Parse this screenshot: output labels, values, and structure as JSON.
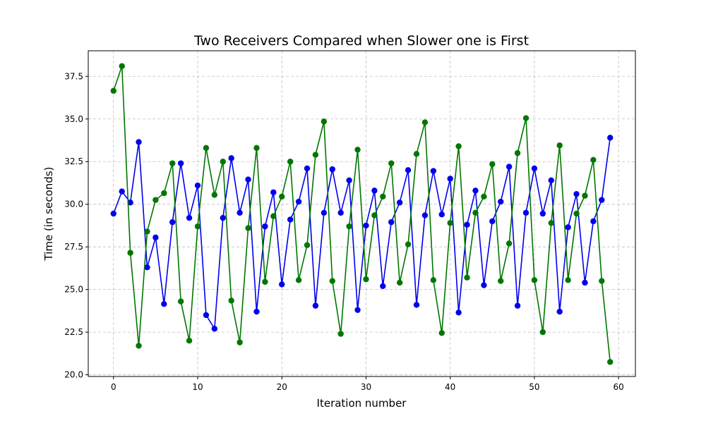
{
  "chart_data": {
    "type": "line",
    "title": "Two Receivers Compared when Slower one is First",
    "xlabel": "Iteration number",
    "ylabel": "Time (in seconds)",
    "xlim": [
      -3,
      62
    ],
    "ylim": [
      19.9,
      39.0
    ],
    "xticks": [
      0,
      10,
      20,
      30,
      40,
      50,
      60
    ],
    "yticks": [
      20.0,
      22.5,
      25.0,
      27.5,
      30.0,
      32.5,
      35.0,
      37.5
    ],
    "grid": true,
    "x": [
      0,
      1,
      2,
      3,
      4,
      5,
      6,
      7,
      8,
      9,
      10,
      11,
      12,
      13,
      14,
      15,
      16,
      17,
      18,
      19,
      20,
      21,
      22,
      23,
      24,
      25,
      26,
      27,
      28,
      29,
      30,
      31,
      32,
      33,
      34,
      35,
      36,
      37,
      38,
      39,
      40,
      41,
      42,
      43,
      44,
      45,
      46,
      47,
      48,
      49,
      50,
      51,
      52,
      53,
      54,
      55,
      56,
      57,
      58,
      59
    ],
    "series": [
      {
        "color": "#0000ee",
        "values": [
          29.45,
          30.75,
          30.1,
          33.65,
          26.3,
          28.05,
          24.15,
          28.95,
          32.4,
          29.2,
          31.1,
          23.5,
          22.7,
          29.2,
          32.7,
          29.5,
          31.45,
          23.7,
          28.7,
          30.7,
          25.3,
          29.1,
          30.15,
          32.1,
          24.05,
          29.5,
          32.05,
          29.5,
          31.4,
          23.8,
          28.75,
          30.8,
          25.2,
          28.95,
          30.1,
          32.0,
          24.1,
          29.35,
          31.95,
          29.4,
          31.5,
          23.65,
          28.8,
          30.8,
          25.25,
          29.0,
          30.15,
          32.2,
          24.05,
          29.5,
          32.1,
          29.45,
          31.4,
          23.7,
          28.65,
          30.6,
          25.4,
          29.0,
          30.25,
          33.9
        ]
      },
      {
        "color": "#007700",
        "values": [
          36.65,
          38.1,
          27.15,
          21.7,
          28.4,
          30.25,
          30.65,
          32.4,
          24.3,
          22.0,
          28.7,
          33.3,
          30.55,
          32.5,
          24.35,
          21.9,
          28.6,
          33.3,
          25.45,
          29.3,
          30.45,
          32.5,
          25.55,
          27.6,
          32.9,
          34.85,
          25.5,
          22.4,
          28.7,
          33.2,
          25.6,
          29.35,
          30.45,
          32.4,
          25.4,
          27.65,
          32.95,
          34.8,
          25.55,
          22.45,
          28.9,
          33.4,
          25.7,
          29.5,
          30.45,
          32.35,
          25.5,
          27.7,
          33.0,
          35.05,
          25.55,
          22.5,
          28.9,
          33.45,
          25.55,
          29.45,
          30.5,
          32.6,
          25.5,
          20.75
        ]
      }
    ]
  }
}
